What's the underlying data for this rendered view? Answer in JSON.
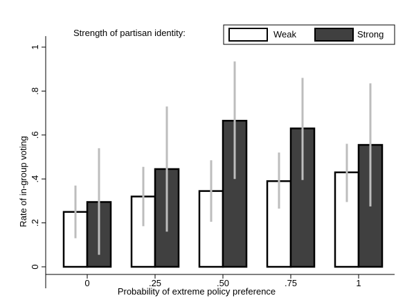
{
  "chart_data": {
    "type": "bar",
    "title": "",
    "xlabel": "Probability of extreme policy preference",
    "ylabel": "Rate of in-group voting",
    "categories": [
      "0",
      ".25",
      ".50",
      ".75",
      "1"
    ],
    "ylim": [
      0,
      1.05
    ],
    "yticks": [
      {
        "value": 0,
        "label": "0"
      },
      {
        "value": 0.2,
        "label": ".2"
      },
      {
        "value": 0.4,
        "label": ".4"
      },
      {
        "value": 0.6,
        "label": ".6"
      },
      {
        "value": 0.8,
        "label": ".8"
      },
      {
        "value": 1.0,
        "label": "1"
      }
    ],
    "grid": false,
    "legend": {
      "title": "Strength of partisan identity:",
      "placement": "top"
    },
    "series": [
      {
        "name": "Weak",
        "color": "#ffffff",
        "values": [
          0.25,
          0.32,
          0.345,
          0.39,
          0.43
        ],
        "ci_low": [
          0.13,
          0.185,
          0.205,
          0.265,
          0.295
        ],
        "ci_high": [
          0.37,
          0.455,
          0.485,
          0.52,
          0.56
        ]
      },
      {
        "name": "Strong",
        "color": "#404040",
        "values": [
          0.295,
          0.445,
          0.665,
          0.63,
          0.555
        ],
        "ci_low": [
          0.055,
          0.16,
          0.4,
          0.395,
          0.275
        ],
        "ci_high": [
          0.54,
          0.73,
          0.935,
          0.86,
          0.835
        ]
      }
    ],
    "ci_color": "#bdbdbd",
    "bar_outline_color": "#000000"
  }
}
